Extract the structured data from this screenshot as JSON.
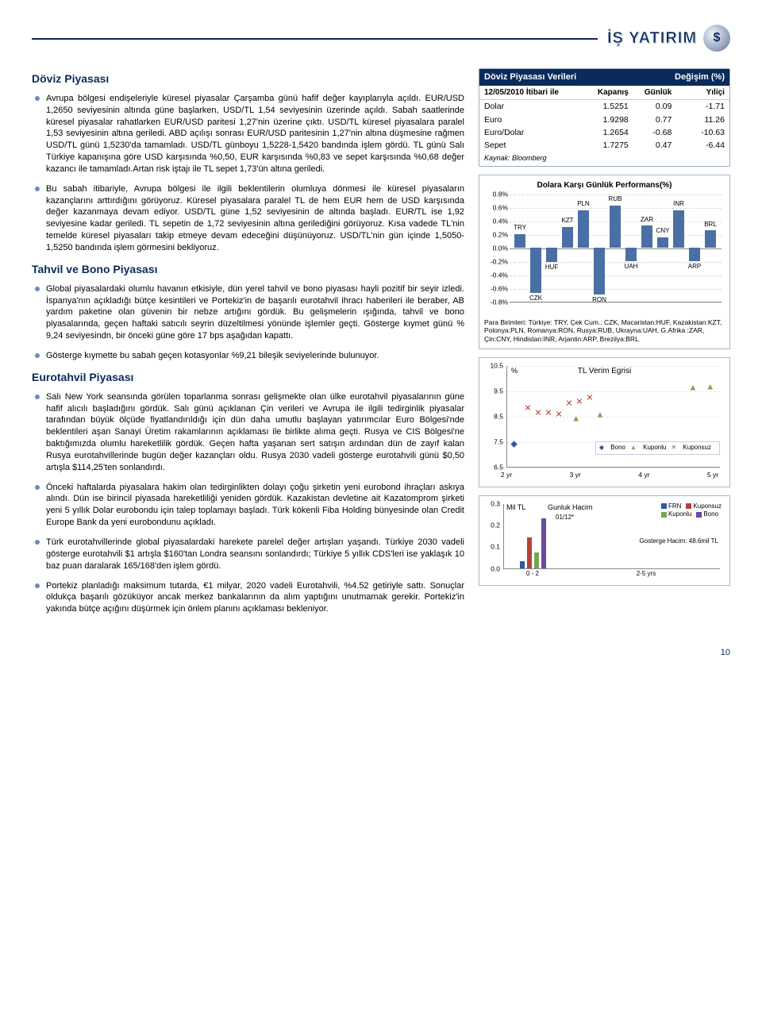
{
  "logo": {
    "text": "İŞ YATIRIM",
    "glyph": "$"
  },
  "page_number": "10",
  "sections": {
    "fx": "Döviz Piyasası",
    "bond": "Tahvil ve Bono Piyasası",
    "eurobond": "Eurotahvil Piyasası"
  },
  "paragraphs": {
    "fx1": "Avrupa bölgesi endişeleriyle küresel piyasalar Çarşamba günü hafif değer kayıplarıyla açıldı. EUR/USD 1,2650 seviyesinin altında güne başlarken, USD/TL 1,54 seviyesinin üzerinde açıldı. Sabah saatlerinde küresel piyasalar rahatlarken EUR/USD paritesi 1,27'nin üzerine çıktı. USD/TL küresel piyasalara paralel 1,53 seviyesinin altına geriledi. ABD açılışı sonrası EUR/USD paritesinin 1,27'nin altına düşmesine rağmen USD/TL günü 1,5230'da tamamladı. USD/TL günboyu 1,5228-1,5420 bandında işlem gördü. TL günü Salı Türkiye kapanışına göre USD karşısında %0,50, EUR karşısında %0,83 ve sepet karşısında %0,68 değer kazancı ile tamamladı.Artan risk iştajı ile TL sepet 1,73'ün altına geriledi.",
    "fx2": "Bu sabah itibariyle, Avrupa bölgesi ile ilgili beklentilerin olumluya dönmesi ile küresel piyasaların kazançlarını arttırdığını görüyoruz. Küresel piyasalara paralel TL de hem EUR hem de USD karşısında değer kazanmaya devam ediyor. USD/TL güne 1,52 seviyesinin de altında başladı. EUR/TL ise 1,92 seviyesine kadar geriledi. TL sepetin de 1,72 seviyesinin altına gerilediğini görüyoruz. Kısa vadede TL'nin temelde küresel piyasaları takip etmeye devam edeceğini düşünüyoruz. USD/TL'nin gün içinde 1,5050-1,5250 bandında işlem görmesini bekliyoruz.",
    "bond1": "Global piyasalardaki olumlu havanın etkisiyle, dün yerel tahvil ve bono piyasası hayli pozitif bir seyir izledi. İspanya'nın açıkladığı bütçe kesintileri ve Portekiz'in de başarılı eurotahvil ihracı haberileri ile beraber, AB yardım paketine olan güvenin bir nebze artığını gördük. Bu gelişmelerin ışığında, tahvil ve bono piyasalarında, geçen haftaki satıcılı seyrin düzeltilmesi yönünde işlemler geçti. Gösterge kıymet günü % 9,24 seviyesindn, bir önceki güne göre 17 bps aşağıdan kapattı.",
    "bond2": "Gösterge kıymette bu sabah geçen kotasyonlar %9,21 bileşik seviyelerinde bulunuyor.",
    "eb1": "Salı New York seansında görülen toparlanma sonrası gelişmekte olan ülke eurotahvil piyasalarının güne hafif alıcılı başladığını gördük. Salı günü açıklanan Çin verileri ve Avrupa ile ilgili tedirginlik piyasalar tarafından büyük ölçüde fiyatlandırıldığı için dün daha umutlu başlayan yatırımcılar Euro Bölgesi'nde beklentileri aşan Sanayi Üretim rakamlarının açıklaması ile birlikte alıma geçti. Rusya ve CIS Bölgesi'ne baktığımızda olumlu hareketlilik gördük. Geçen hafta yaşanan sert satışın ardından dün de zayıf kalan Rusya eurotahvillerinde bugün değer kazançları oldu. Rusya 2030 vadeli gösterge eurotahvili günü $0,50 artışla $114,25'ten sonlandırdı.",
    "eb2": "Önceki haftalarda piyasalara hakim olan tedirginlikten dolayı çoğu şirketin yeni eurobond ihraçları askıya alındı. Dün ise birincil piyasada hareketliliği yeniden gördük. Kazakistan devletine ait Kazatomprom şirketi yeni 5 yıllık Dolar eurobondu için talep toplamayı başladı. Türk kökenli Fiba Holding bünyesinde olan Credit Europe Bank da yeni eurobondunu açıkladı.",
    "eb3": "Türk eurotahvillerinde global piyasalardaki harekete parelel değer artışları yaşandı. Türkiye 2030 vadeli gösterge eurotahvili $1 artışla $160'tan Londra seansını sonlandırdı; Türkiye 5 yıllık CDS'leri ise yaklaşık 10 baz puan daralarak 165/168'den işlem gördü.",
    "eb4": "Portekiz planladığı maksimum tutarda, €1 milyar, 2020 vadeli Eurotahvili, %4.52 getiriyle sattı. Sonuçlar oldukça başarılı gözüküyor ancak merkez bankalarının da alım yaptığını unutmamak gerekir. Portekiz'in yakında bütçe açığını düşürmek için önlem planını açıklaması bekleniyor."
  },
  "fx_table": {
    "header_left": "Döviz Piyasası Verileri",
    "header_right": "Değişim (%)",
    "sub": [
      "12/05/2010 İtibari ile",
      "Kapanış",
      "Günlük",
      "Yıliçi"
    ],
    "rows": [
      [
        "Dolar",
        "1.5251",
        "0.09",
        "-1.71"
      ],
      [
        "Euro",
        "1.9298",
        "0.77",
        "11.26"
      ],
      [
        "Euro/Dolar",
        "1.2654",
        "-0.68",
        "-10.63"
      ],
      [
        "Sepet",
        "1.7275",
        "0.47",
        "-6.44"
      ]
    ],
    "source": "Kaynak: Bloomberg"
  },
  "perf_chart": {
    "title": "Dolara Karşı Günlük Performans(%)",
    "y_min": -0.8,
    "y_max": 0.8,
    "y_step": 0.2,
    "y_ticks": [
      "0.8%",
      "0.6%",
      "0.4%",
      "0.2%",
      "0.0%",
      "-0.2%",
      "-0.4%",
      "-0.6%",
      "-0.8%"
    ],
    "bar_color": "#4a6fa5",
    "bars": [
      {
        "label": "TRY",
        "value": 0.2,
        "label_pos": "above"
      },
      {
        "label": "CZK",
        "value": -0.68,
        "label_pos": "below"
      },
      {
        "label": "HUF",
        "value": -0.22,
        "label_pos": "below"
      },
      {
        "label": "KZT",
        "value": 0.3,
        "label_pos": "above"
      },
      {
        "label": "PLN",
        "value": 0.55,
        "label_pos": "above"
      },
      {
        "label": "RON",
        "value": -0.7,
        "label_pos": "below"
      },
      {
        "label": "RUB",
        "value": 0.62,
        "label_pos": "above"
      },
      {
        "label": "UAH",
        "value": -0.2,
        "label_pos": "below"
      },
      {
        "label": "ZAR",
        "value": 0.32,
        "label_pos": "above"
      },
      {
        "label": "CNY",
        "value": 0.15,
        "label_pos": "above"
      },
      {
        "label": "INR",
        "value": 0.55,
        "label_pos": "above"
      },
      {
        "label": "ARP",
        "value": -0.2,
        "label_pos": "below"
      },
      {
        "label": "BRL",
        "value": 0.25,
        "label_pos": "above"
      }
    ],
    "footnote": "Para Birimleri: Türkiye: TRY, Çek Cum.: CZK, Macaristan:HUF, Kazakistan:KZT, Polonya:PLN, Romanya:RON, Rusya:RUB, Ukrayna:UAH, G.Afrika :ZAR, Çin:CNY, Hindistan:INR, Arjantin:ARP, Brezilya:BRL"
  },
  "yield_chart": {
    "title": "TL Verim Egrisi",
    "pct_label": "%",
    "y_ticks": [
      "10.5",
      "9.5",
      "8.5",
      "7.5",
      "6.5"
    ],
    "y_min": 6.5,
    "y_max": 10.5,
    "x_ticks": [
      "2 yr",
      "3 yr",
      "4 yr",
      "5 yr"
    ],
    "x_min": 2,
    "x_max": 5,
    "legend": [
      {
        "label": "Bono",
        "color": "#2c5aa0",
        "glyph": "◆"
      },
      {
        "label": "Kuponlu",
        "color": "#7aa353",
        "glyph": "▲"
      },
      {
        "label": "Kuponsuz",
        "color": "#b2443a",
        "glyph": "✕"
      }
    ],
    "points": [
      {
        "x": 2.1,
        "y": 7.4,
        "s": "bono"
      },
      {
        "x": 2.3,
        "y": 8.8,
        "s": "kuponsuz"
      },
      {
        "x": 2.45,
        "y": 8.6,
        "s": "kuponsuz"
      },
      {
        "x": 2.6,
        "y": 8.6,
        "s": "kuponsuz"
      },
      {
        "x": 2.75,
        "y": 8.55,
        "s": "kuponsuz"
      },
      {
        "x": 2.9,
        "y": 9.0,
        "s": "kuponsuz"
      },
      {
        "x": 3.05,
        "y": 9.05,
        "s": "kuponsuz"
      },
      {
        "x": 3.2,
        "y": 9.2,
        "s": "kuponsuz"
      },
      {
        "x": 3.0,
        "y": 8.4,
        "s": "kuponlu"
      },
      {
        "x": 3.35,
        "y": 8.55,
        "s": "kuponlu"
      },
      {
        "x": 4.7,
        "y": 9.6,
        "s": "kuponlu"
      },
      {
        "x": 4.95,
        "y": 9.65,
        "s": "kuponlu"
      }
    ]
  },
  "vol_chart": {
    "title_left": "Mil TL",
    "title_mid": "Gunluk Hacim",
    "date": "01/12*",
    "note": "Gosterge Hacim: 48.6mil TL",
    "y_ticks": [
      "0.3",
      "0.2",
      "0.1",
      "0.0"
    ],
    "y_min": 0.0,
    "y_max": 0.3,
    "x_labels": [
      "0 - 2",
      "2-5 yrs"
    ],
    "legend": [
      {
        "label": "FRN",
        "color": "#2c5aa0"
      },
      {
        "label": "Kuponsuz",
        "color": "#b2443a"
      },
      {
        "label": "Kuponlu",
        "color": "#7aa353"
      },
      {
        "label": "Bono",
        "color": "#6a4a9a"
      }
    ],
    "groups": [
      {
        "x": 0,
        "bars": [
          {
            "series": "FRN",
            "value": 0.03
          },
          {
            "series": "Kuponsuz",
            "value": 0.14
          },
          {
            "series": "Kuponlu",
            "value": 0.07
          },
          {
            "series": "Bono",
            "value": 0.23
          }
        ]
      },
      {
        "x": 1,
        "bars": [
          {
            "series": "FRN",
            "value": 0.0
          },
          {
            "series": "Kuponsuz",
            "value": 0.0
          },
          {
            "series": "Kuponlu",
            "value": 0.0
          },
          {
            "series": "Bono",
            "value": 0.0
          }
        ]
      }
    ]
  }
}
